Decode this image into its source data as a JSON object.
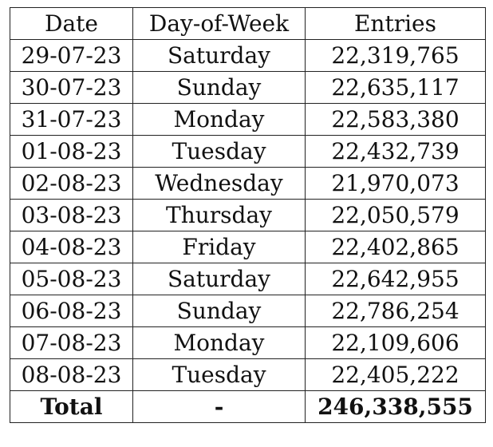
{
  "table": {
    "headers": [
      "Date",
      "Day-of-Week",
      "Entries"
    ],
    "rows": [
      {
        "date": "29-07-23",
        "day": "Saturday",
        "entries": "22,319,765"
      },
      {
        "date": "30-07-23",
        "day": "Sunday",
        "entries": "22,635,117"
      },
      {
        "date": "31-07-23",
        "day": "Monday",
        "entries": "22,583,380"
      },
      {
        "date": "01-08-23",
        "day": "Tuesday",
        "entries": "22,432,739"
      },
      {
        "date": "02-08-23",
        "day": "Wednesday",
        "entries": "21,970,073"
      },
      {
        "date": "03-08-23",
        "day": "Thursday",
        "entries": "22,050,579"
      },
      {
        "date": "04-08-23",
        "day": "Friday",
        "entries": "22,402,865"
      },
      {
        "date": "05-08-23",
        "day": "Saturday",
        "entries": "22,642,955"
      },
      {
        "date": "06-08-23",
        "day": "Sunday",
        "entries": "22,786,254"
      },
      {
        "date": "07-08-23",
        "day": "Monday",
        "entries": "22,109,606"
      },
      {
        "date": "08-08-23",
        "day": "Tuesday",
        "entries": "22,405,222"
      }
    ],
    "total": {
      "label": "Total",
      "day": "-",
      "entries": "246,338,555"
    }
  }
}
